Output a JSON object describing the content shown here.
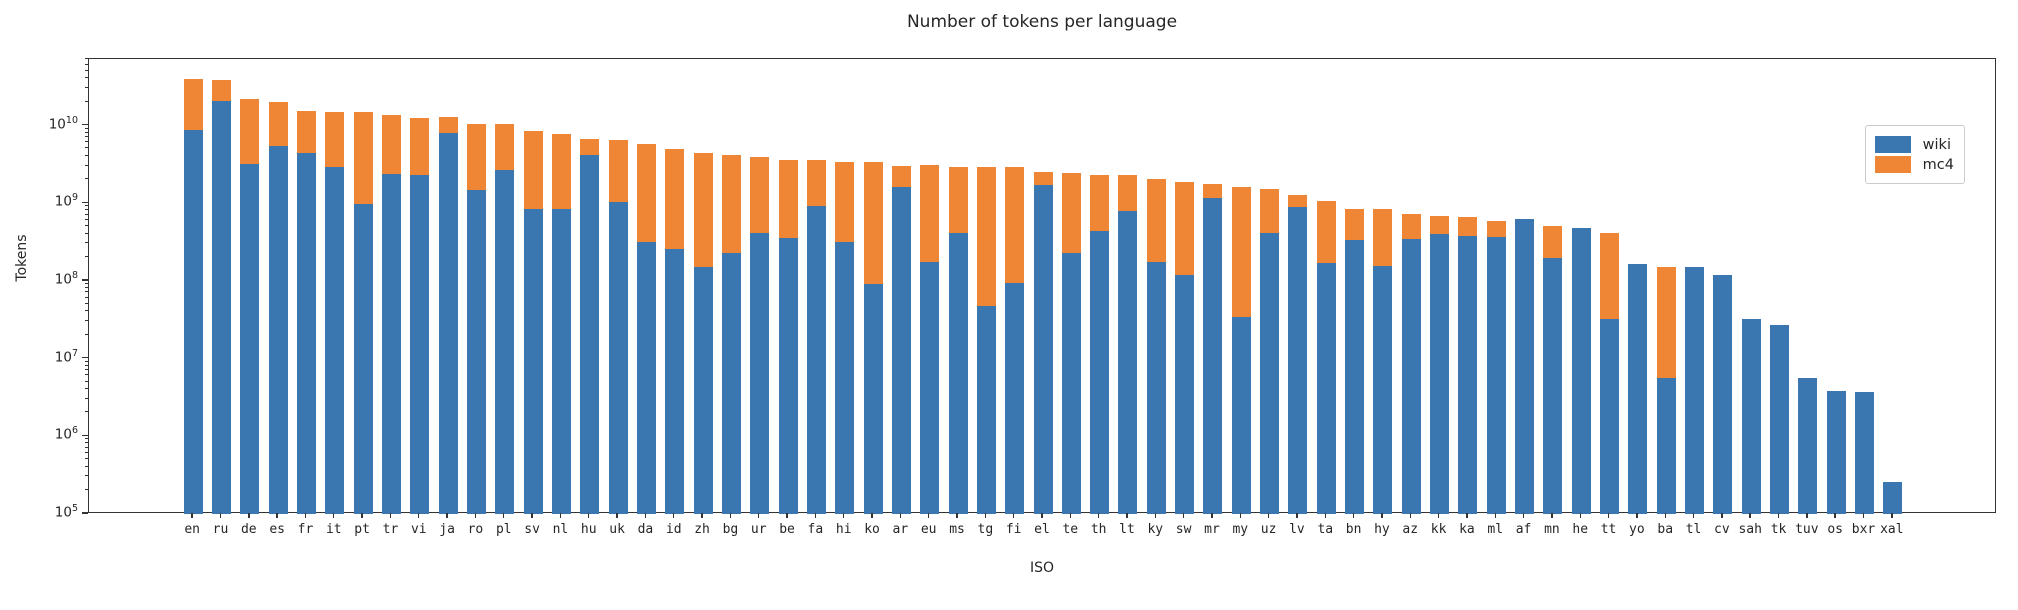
{
  "title": "Number of tokens per language",
  "xlabel": "ISO",
  "ylabel": "Tokens",
  "legend": {
    "wiki_label": "wiki",
    "mc4_label": "mc4"
  },
  "colors": {
    "wiki": "#3a76af",
    "mc4": "#ef8636",
    "spine": "#333333",
    "text": "#262626"
  },
  "chart_data": {
    "type": "bar",
    "stacked": true,
    "title": "Number of tokens per language",
    "xlabel": "ISO",
    "ylabel": "Tokens",
    "y_scale": "log",
    "ylim": [
      100000,
      72000000000
    ],
    "y_tick_exponents": [
      5,
      6,
      7,
      8,
      9,
      10
    ],
    "grid": false,
    "legend_position": "upper right",
    "categories": [
      "en",
      "ru",
      "de",
      "es",
      "fr",
      "it",
      "pt",
      "tr",
      "vi",
      "ja",
      "ro",
      "pl",
      "sv",
      "nl",
      "hu",
      "uk",
      "da",
      "id",
      "zh",
      "bg",
      "ur",
      "be",
      "fa",
      "hi",
      "ko",
      "ar",
      "eu",
      "ms",
      "tg",
      "fi",
      "el",
      "te",
      "th",
      "lt",
      "ky",
      "sw",
      "mr",
      "my",
      "uz",
      "lv",
      "ta",
      "bn",
      "hy",
      "az",
      "kk",
      "ka",
      "ml",
      "af",
      "mn",
      "he",
      "tt",
      "yo",
      "ba",
      "tl",
      "cv",
      "sah",
      "tk",
      "tuv",
      "os",
      "bxr",
      "xal"
    ],
    "series": [
      {
        "name": "wiki",
        "values": [
          8900000000.0,
          21000000000.0,
          3200000000.0,
          5400000000.0,
          4400000000.0,
          2900000000.0,
          980000000.0,
          2400000000.0,
          2300000000.0,
          8100000000.0,
          1500000000.0,
          2650000000.0,
          840000000.0,
          840000000.0,
          4200000000.0,
          1030000000.0,
          320000000.0,
          260000000.0,
          150000000.0,
          230000000.0,
          410000000.0,
          360000000.0,
          920000000.0,
          320000000.0,
          91000000.0,
          1600000000.0,
          175000000.0,
          410000000.0,
          47000000.0,
          94000000.0,
          1700000000.0,
          230000000.0,
          440000000.0,
          790000000.0,
          175000000.0,
          120000000.0,
          1160000000.0,
          34000000.0,
          410000000.0,
          890000000.0,
          170000000.0,
          340000000.0,
          156000000.0,
          350000000.0,
          400000000.0,
          380000000.0,
          370000000.0,
          620000000.0,
          200000000.0,
          480000000.0,
          32000000.0,
          165000000.0,
          5700000.0,
          150000000.0,
          120000000.0,
          32000000.0,
          27000000.0,
          5700000.0,
          3800000.0,
          3700000.0,
          260000.0
        ]
      },
      {
        "name": "mc4",
        "values": [
          31000000000.0,
          18000000000.0,
          19000000000.0,
          14500000000.0,
          11100000000.0,
          12000000000.0,
          13800000000.0,
          11400000000.0,
          10300000000.0,
          4900000000.0,
          9100000000.0,
          7700000000.0,
          7600000000.0,
          6900000000.0,
          2600000000.0,
          5400000000.0,
          5400000000.0,
          4800000000.0,
          4250000000.0,
          4000000000.0,
          3500000000.0,
          3200000000.0,
          2700000000.0,
          3100000000.0,
          3350000000.0,
          1400000000.0,
          2900000000.0,
          2500000000.0,
          2850000000.0,
          2800000000.0,
          800000000.0,
          2200000000.0,
          1900000000.0,
          1500000000.0,
          1850000000.0,
          1740000000.0,
          590000000.0,
          1570000000.0,
          1100000000.0,
          380000000.0,
          890000000.0,
          500000000.0,
          680000000.0,
          370000000.0,
          280000000.0,
          280000000.0,
          230000000.0,
          0,
          310000000.0,
          0,
          380000000.0,
          0,
          145000000.0,
          0,
          0,
          0,
          0,
          0,
          0,
          0,
          0
        ]
      }
    ]
  }
}
